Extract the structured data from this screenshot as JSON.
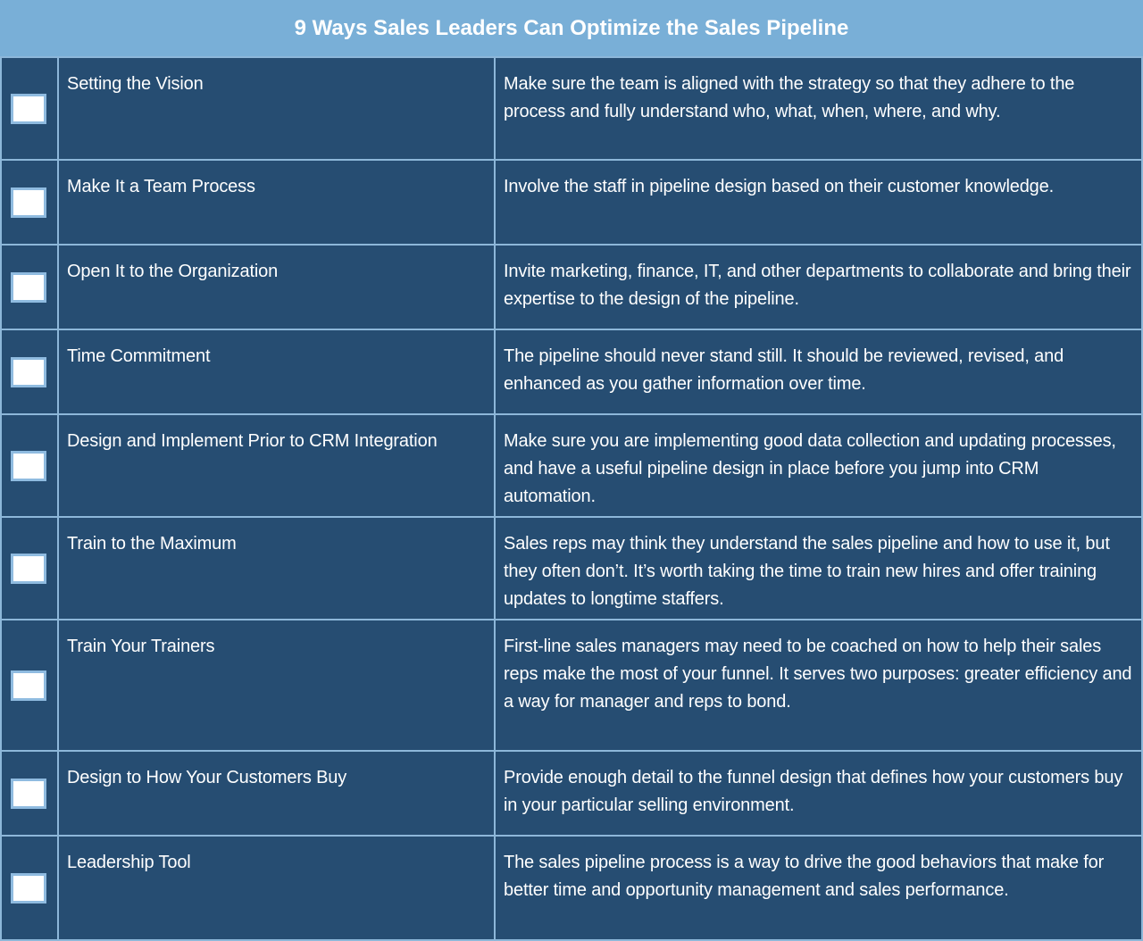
{
  "title": "9 Ways Sales Leaders Can Optimize the Sales Pipeline",
  "rows": [
    {
      "title": "Setting the Vision",
      "description": "Make sure the team is aligned with the strategy so that they adhere to the process and fully understand who, what, when, where, and why.",
      "checked": false
    },
    {
      "title": "Make It a Team Process",
      "description": "Involve the staff in pipeline design based on their customer knowledge.",
      "checked": false
    },
    {
      "title": "Open It to the Organization",
      "description": "Invite marketing, finance, IT, and other departments to collaborate and bring their expertise to the design of the pipeline.",
      "checked": false
    },
    {
      "title": "Time Commitment",
      "description": "The pipeline should never stand still. It should be reviewed, revised, and enhanced as you gather information over time.",
      "checked": false
    },
    {
      "title": "Design and Implement Prior to CRM Integration",
      "description": "Make sure you are implementing good data collection and updating processes, and have a useful pipeline design in place before you jump into CRM automation.",
      "checked": false
    },
    {
      "title": "Train to the Maximum",
      "description": "Sales reps may think they understand the sales pipeline and how to use it, but they often don’t. It’s worth taking the time to train new hires and offer training updates to longtime staffers.",
      "checked": false
    },
    {
      "title": "Train Your Trainers",
      "description": "First-line sales managers may need to be coached on how to help their sales reps make the most of your funnel. It serves two purposes: greater efficiency and a way for manager and reps to bond.",
      "checked": false
    },
    {
      "title": "Design to How Your Customers Buy",
      "description": "Provide enough detail to the funnel design that defines how your customers buy in your particular selling environment.",
      "checked": false
    },
    {
      "title": "Leadership Tool",
      "description": "The sales pipeline process is a way to drive the good behaviors that make for better time and opportunity management and sales performance.",
      "checked": false
    }
  ]
}
